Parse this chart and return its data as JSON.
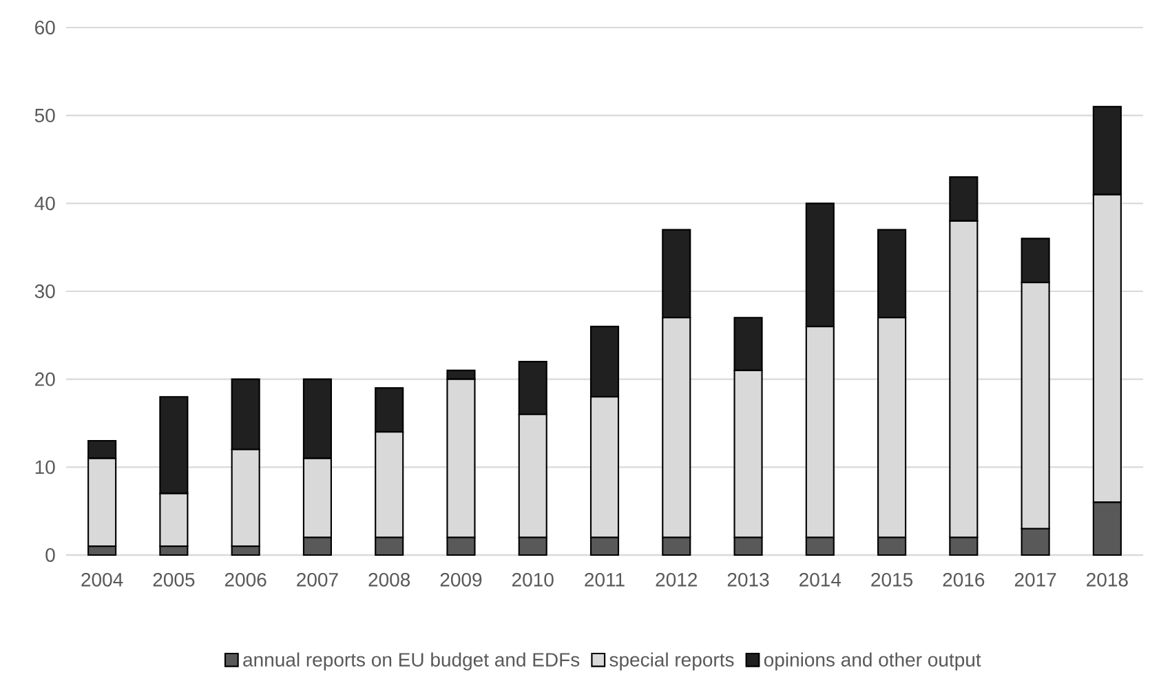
{
  "chart_data": {
    "type": "bar",
    "stacked": true,
    "categories": [
      "2004",
      "2005",
      "2006",
      "2007",
      "2008",
      "2009",
      "2010",
      "2011",
      "2012",
      "2013",
      "2014",
      "2015",
      "2016",
      "2017",
      "2018"
    ],
    "series": [
      {
        "name": "annual reports on EU budget and EDFs",
        "color": "#595959",
        "values": [
          1,
          1,
          1,
          2,
          2,
          2,
          2,
          2,
          2,
          2,
          2,
          2,
          2,
          3,
          6
        ]
      },
      {
        "name": "special reports",
        "color": "#d9d9d9",
        "values": [
          10,
          6,
          11,
          9,
          12,
          18,
          14,
          16,
          25,
          19,
          24,
          25,
          36,
          28,
          35
        ]
      },
      {
        "name": "opinions and other output",
        "color": "#202020",
        "values": [
          2,
          11,
          8,
          9,
          5,
          1,
          6,
          8,
          10,
          6,
          14,
          10,
          5,
          5,
          10
        ]
      }
    ],
    "ylim": [
      0,
      60
    ],
    "yticks": [
      0,
      10,
      20,
      30,
      40,
      50,
      60
    ],
    "grid": "y",
    "legend": "bottom"
  }
}
